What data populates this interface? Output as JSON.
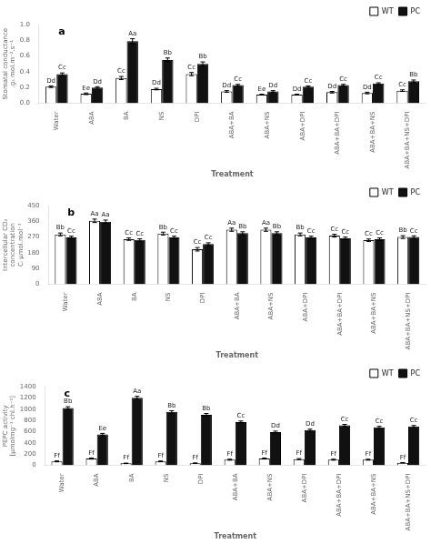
{
  "chart_data": [
    {
      "type": "bar",
      "title": "a",
      "categories": [
        "Water",
        "ABA",
        "BA",
        "NS",
        "DPI",
        "ABA+BA",
        "ABA+NS",
        "ABA+DPI",
        "ABA+BA+DPI",
        "ABA+BA+NS",
        "ABA+BA+NS+DPI"
      ],
      "xlabel": "Treatment",
      "ylabel": "Stomatal conductance\n.gₛ mol.m⁻².s⁻¹",
      "ylim": [
        0,
        1.0
      ],
      "yticks": [
        {
          "value": 0,
          "label": "0.0"
        },
        0.2,
        0.4,
        0.6,
        0.8,
        {
          "value": 1.0,
          "label": "1.0"
        }
      ],
      "grid": false,
      "legend": "upper right",
      "series": [
        {
          "name": "WT",
          "color": "white",
          "values": [
            0.21,
            0.12,
            0.32,
            0.18,
            0.37,
            0.15,
            0.11,
            0.11,
            0.14,
            0.13,
            0.16
          ],
          "errors": [
            0.01,
            0.01,
            0.02,
            0.01,
            0.02,
            0.01,
            0.005,
            0.005,
            0.01,
            0.01,
            0.01
          ],
          "annotations": [
            "Dd",
            "Ee",
            "Cc",
            "Dd",
            "Cc",
            "Dd",
            "Ee",
            "Dd",
            "Dd",
            "Dd",
            "Cc"
          ]
        },
        {
          "name": "PC",
          "color": "#111111",
          "values": [
            0.37,
            0.2,
            0.79,
            0.55,
            0.5,
            0.23,
            0.15,
            0.21,
            0.23,
            0.25,
            0.28
          ],
          "errors": [
            0.015,
            0.01,
            0.03,
            0.025,
            0.025,
            0.01,
            0.01,
            0.01,
            0.01,
            0.01,
            0.015
          ],
          "annotations": [
            "Cc",
            "Dd",
            "Aa",
            "Bb",
            "Bb",
            "Cc",
            "Dd",
            "Cc",
            "Cc",
            "Cc",
            "Bb"
          ]
        }
      ]
    },
    {
      "type": "bar",
      "title": "b",
      "categories": [
        "Water",
        "ABA",
        "BA",
        "NS",
        "DPI",
        "ABA+BA",
        "ABA+NS",
        "ABA+DPI",
        "ABA+BA+DPI",
        "ABA+BA+NS",
        "ABA+BA+NS+DPI"
      ],
      "xlabel": "Treatment",
      "ylabel": "Intercellular CO₂\nconcentration\nCᵢ μmol.mol⁻¹",
      "ylim": [
        0,
        450
      ],
      "yticks": [
        0,
        90,
        180,
        270,
        360,
        450
      ],
      "grid": false,
      "legend": "upper right",
      "series": [
        {
          "name": "WT",
          "color": "white",
          "values": [
            285,
            363,
            258,
            290,
            200,
            312,
            312,
            285,
            278,
            252,
            270
          ],
          "errors": [
            8,
            10,
            7,
            8,
            10,
            9,
            9,
            8,
            8,
            7,
            8
          ],
          "annotations": [
            "Bb",
            "Aa",
            "Cc",
            "Bb",
            "Cc",
            "Aa",
            "Aa",
            "Bb",
            "Cc",
            "Cc",
            "Bb"
          ]
        },
        {
          "name": "PC",
          "color": "#111111",
          "values": [
            268,
            358,
            253,
            268,
            230,
            292,
            292,
            268,
            263,
            258,
            270
          ],
          "errors": [
            7,
            9,
            7,
            7,
            7,
            8,
            8,
            7,
            7,
            7,
            7
          ],
          "annotations": [
            "Cc",
            "Aa",
            "Cc",
            "Cc",
            "Cc",
            "Bb",
            "Bb",
            "Cc",
            "Cc",
            "Cc",
            "Cc"
          ]
        }
      ]
    },
    {
      "type": "bar",
      "title": "c",
      "categories": [
        "Water",
        "ABA",
        "BA",
        "NS",
        "DPI",
        "ABA+BA",
        "ABA+NS",
        "ABA+DPI",
        "ABA+BA+DPI",
        "ABA+BA+NS",
        "ABA+BA+NS+DPI"
      ],
      "xlabel": "Treatment",
      "ylabel": "PEPC activity\n[μmolmg⁻¹ chl.h⁻¹]",
      "ylim": [
        0,
        1400
      ],
      "yticks": [
        0,
        200,
        400,
        600,
        800,
        1000,
        1200,
        1400
      ],
      "grid": false,
      "legend": "upper right",
      "series": [
        {
          "name": "WT",
          "color": "white",
          "values": [
            70,
            120,
            35,
            70,
            38,
            100,
            120,
            110,
            100,
            100,
            45
          ],
          "errors": [
            8,
            10,
            4,
            7,
            4,
            9,
            9,
            9,
            9,
            9,
            4
          ],
          "annotations": [
            "Ff",
            "Ff",
            "Ff",
            "Ff",
            "Ff",
            "Ff",
            "Ff",
            "Ff",
            "Ff",
            "Ff",
            "Ff"
          ]
        },
        {
          "name": "PC",
          "color": "#111111",
          "values": [
            1020,
            550,
            1200,
            950,
            900,
            770,
            590,
            625,
            710,
            675,
            690
          ],
          "errors": [
            22,
            18,
            28,
            22,
            22,
            18,
            18,
            18,
            18,
            18,
            18
          ],
          "annotations": [
            "Bb",
            "Ee",
            "Aa",
            "Bb",
            "Bb",
            "Cc",
            "Dd",
            "Dd",
            "Cc",
            "Cc",
            "Cc"
          ]
        }
      ]
    }
  ]
}
